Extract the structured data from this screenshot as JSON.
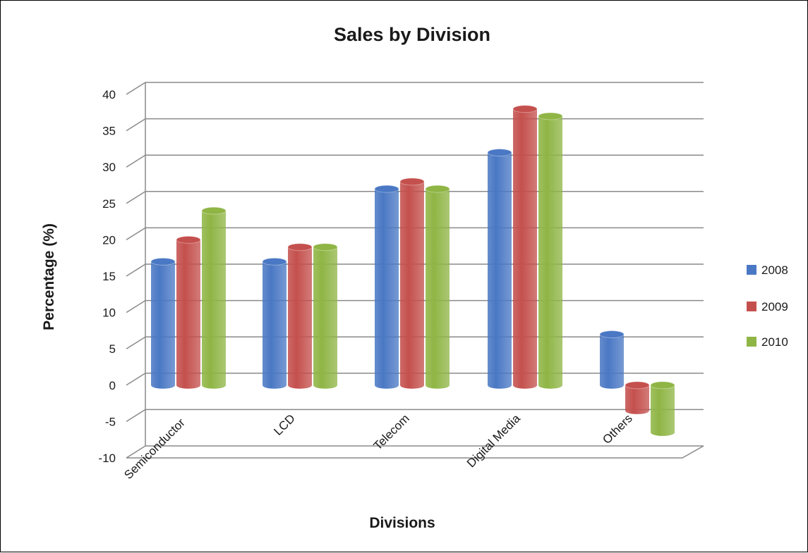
{
  "chart_data": {
    "type": "bar",
    "title": "Sales by Division",
    "xlabel": "Divisions",
    "ylabel": "Percentage (%)",
    "ylim": [
      -10,
      40
    ],
    "yticks": [
      "-10",
      "-5",
      "0",
      "5",
      "10",
      "15",
      "20",
      "25",
      "30",
      "35",
      "40"
    ],
    "categories": [
      "Semiconductor",
      "LCD",
      "Telecom",
      "Digital Media",
      "Others"
    ],
    "series": [
      {
        "name": "2008",
        "color": "#4a78c4",
        "values": [
          17,
          17,
          27,
          32,
          7
        ]
      },
      {
        "name": "2009",
        "color": "#c4504d",
        "values": [
          20,
          19,
          28,
          38,
          -3.5
        ]
      },
      {
        "name": "2010",
        "color": "#8fb545",
        "values": [
          24,
          19,
          27,
          37,
          -6.5
        ]
      }
    ],
    "grid": true,
    "legend_position": "right"
  }
}
